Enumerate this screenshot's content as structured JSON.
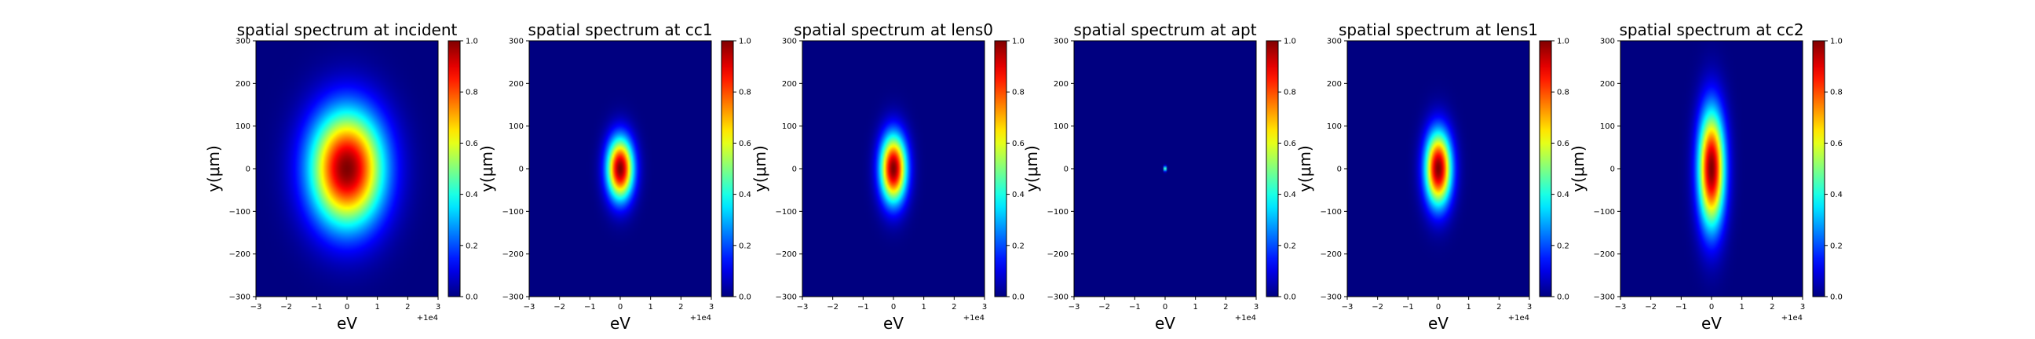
{
  "figure": {
    "background": "#ffffff"
  },
  "colormap": "jet",
  "chart_data": [
    {
      "type": "heatmap",
      "title": "spatial spectrum at incident",
      "xlabel": "eV",
      "ylabel": "y(μm)",
      "x_offset_label": "+1e4",
      "xlim": [
        -3,
        3
      ],
      "ylim": [
        -300,
        300
      ],
      "xticks": [
        "−3",
        "−2",
        "−1",
        "0",
        "1",
        "2",
        "3"
      ],
      "yticks": [
        "300",
        "200",
        "100",
        "0",
        "−100",
        "−200",
        "−300"
      ],
      "colorbar": {
        "range": [
          0,
          1
        ],
        "ticks": [
          "1.0",
          "0.8",
          "0.6",
          "0.4",
          "0.2",
          "0.0"
        ]
      },
      "peak": {
        "x": 0,
        "y": 0,
        "value": 1.0
      },
      "sigma_x": 0.85,
      "sigma_y": 95
    },
    {
      "type": "heatmap",
      "title": "spatial spectrum at cc1",
      "xlabel": "eV",
      "ylabel": "y(μm)",
      "x_offset_label": "+1e4",
      "xlim": [
        -3,
        3
      ],
      "ylim": [
        -300,
        300
      ],
      "xticks": [
        "−3",
        "−2",
        "−1",
        "0",
        "1",
        "2",
        "3"
      ],
      "yticks": [
        "300",
        "200",
        "100",
        "0",
        "−100",
        "−200",
        "−300"
      ],
      "colorbar": {
        "range": [
          0,
          1
        ],
        "ticks": [
          "1.0",
          "0.8",
          "0.6",
          "0.4",
          "0.2",
          "0.0"
        ]
      },
      "peak": {
        "x": 0,
        "y": 0,
        "value": 1.0
      },
      "sigma_x": 0.3,
      "sigma_y": 50
    },
    {
      "type": "heatmap",
      "title": "spatial spectrum at lens0",
      "xlabel": "eV",
      "ylabel": "y(μm)",
      "x_offset_label": "+1e4",
      "xlim": [
        -3,
        3
      ],
      "ylim": [
        -300,
        300
      ],
      "xticks": [
        "−3",
        "−2",
        "−1",
        "0",
        "1",
        "2",
        "3"
      ],
      "yticks": [
        "300",
        "200",
        "100",
        "0",
        "−100",
        "−200",
        "−300"
      ],
      "colorbar": {
        "range": [
          0,
          1
        ],
        "ticks": [
          "1.0",
          "0.8",
          "0.6",
          "0.4",
          "0.2",
          "0.0"
        ]
      },
      "peak": {
        "x": 0,
        "y": 0,
        "value": 1.0
      },
      "sigma_x": 0.3,
      "sigma_y": 55
    },
    {
      "type": "heatmap",
      "title": "spatial spectrum at apt",
      "xlabel": "eV",
      "ylabel": "y(μm)",
      "x_offset_label": "+1e4",
      "xlim": [
        -3,
        3
      ],
      "ylim": [
        -300,
        300
      ],
      "xticks": [
        "−3",
        "−2",
        "−1",
        "0",
        "1",
        "2",
        "3"
      ],
      "yticks": [
        "300",
        "200",
        "100",
        "0",
        "−100",
        "−200",
        "−300"
      ],
      "colorbar": {
        "range": [
          0,
          1
        ],
        "ticks": [
          "1.0",
          "0.8",
          "0.6",
          "0.4",
          "0.2",
          "0.0"
        ]
      },
      "peak": {
        "x": 0,
        "y": 0,
        "value": 1.0
      },
      "sigma_x": 0.02,
      "sigma_y": 4
    },
    {
      "type": "heatmap",
      "title": "spatial spectrum at lens1",
      "xlabel": "eV",
      "ylabel": "y(μm)",
      "x_offset_label": "+1e4",
      "xlim": [
        -3,
        3
      ],
      "ylim": [
        -300,
        300
      ],
      "xticks": [
        "−3",
        "−2",
        "−1",
        "0",
        "1",
        "2",
        "3"
      ],
      "yticks": [
        "300",
        "200",
        "100",
        "0",
        "−100",
        "−200",
        "−300"
      ],
      "colorbar": {
        "range": [
          0,
          1
        ],
        "ticks": [
          "1.0",
          "0.8",
          "0.6",
          "0.4",
          "0.2",
          "0.0"
        ]
      },
      "peak": {
        "x": 0,
        "y": 0,
        "value": 1.0
      },
      "sigma_x": 0.3,
      "sigma_y": 60
    },
    {
      "type": "heatmap",
      "title": "spatial spectrum at cc2",
      "xlabel": "eV",
      "ylabel": "y(μm)",
      "x_offset_label": "+1e4",
      "xlim": [
        -3,
        3
      ],
      "ylim": [
        -300,
        300
      ],
      "xticks": [
        "−3",
        "−2",
        "−1",
        "0",
        "1",
        "2",
        "3"
      ],
      "yticks": [
        "300",
        "200",
        "100",
        "0",
        "−100",
        "−200",
        "−300"
      ],
      "colorbar": {
        "range": [
          0,
          1
        ],
        "ticks": [
          "1.0",
          "0.8",
          "0.6",
          "0.4",
          "0.2",
          "0.0"
        ]
      },
      "peak": {
        "x": 0,
        "y": 0,
        "value": 1.0
      },
      "sigma_x": 0.3,
      "sigma_y": 95
    }
  ]
}
